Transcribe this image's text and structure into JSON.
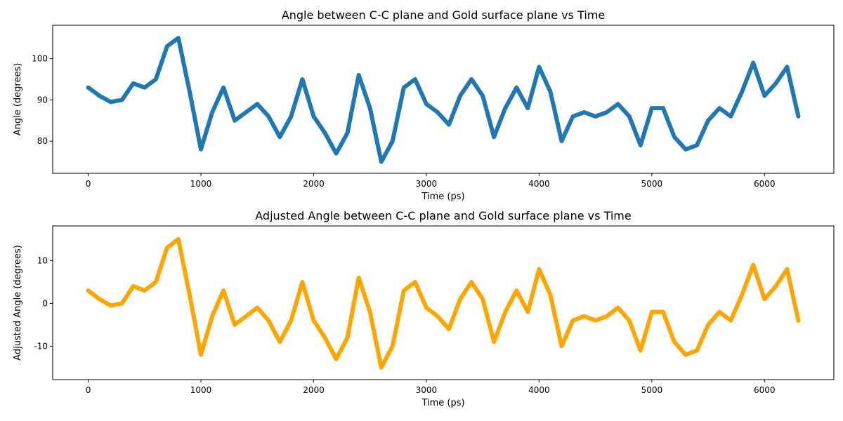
{
  "chart_data": [
    {
      "type": "line",
      "title": "Angle between C-C plane and Gold surface plane vs Time",
      "xlabel": "Time (ps)",
      "ylabel": "Angle (degrees)",
      "x": [
        0,
        100,
        200,
        300,
        400,
        500,
        600,
        700,
        800,
        900,
        1000,
        1100,
        1200,
        1300,
        1400,
        1500,
        1600,
        1700,
        1800,
        1900,
        2000,
        2100,
        2200,
        2300,
        2400,
        2500,
        2600,
        2700,
        2800,
        2900,
        3000,
        3100,
        3200,
        3300,
        3400,
        3500,
        3600,
        3700,
        3800,
        3900,
        4000,
        4100,
        4200,
        4300,
        4400,
        4500,
        4600,
        4700,
        4800,
        4900,
        5000,
        5100,
        5200,
        5300,
        5400,
        5500,
        5600,
        5700,
        5800,
        5900,
        6000,
        6100,
        6200,
        6300
      ],
      "series": [
        {
          "color": "#1f77b4",
          "values": [
            93,
            91,
            89.5,
            90,
            94,
            93,
            95,
            103,
            105,
            92,
            78,
            87,
            93,
            85,
            87,
            89,
            86,
            81,
            86,
            95,
            86,
            82,
            77,
            82,
            96,
            88,
            75,
            80,
            93,
            95,
            89,
            87,
            84,
            91,
            95,
            91,
            81,
            88,
            93,
            88,
            98,
            92,
            80,
            86,
            87,
            86,
            87,
            89,
            86,
            79,
            88,
            88,
            81,
            78,
            79,
            85,
            88,
            86,
            92,
            99,
            91,
            94,
            98,
            86
          ]
        }
      ],
      "xlim": [
        -315,
        6615
      ],
      "ylim": [
        72.2,
        108.1
      ],
      "xticks": [
        0,
        1000,
        2000,
        3000,
        4000,
        5000,
        6000
      ],
      "yticks": [
        80,
        90,
        100
      ]
    },
    {
      "type": "line",
      "title": "Adjusted Angle between C-C plane and Gold surface plane vs Time",
      "xlabel": "Time (ps)",
      "ylabel": "Adjusted Angle (degrees)",
      "x": [
        0,
        100,
        200,
        300,
        400,
        500,
        600,
        700,
        800,
        900,
        1000,
        1100,
        1200,
        1300,
        1400,
        1500,
        1600,
        1700,
        1800,
        1900,
        2000,
        2100,
        2200,
        2300,
        2400,
        2500,
        2600,
        2700,
        2800,
        2900,
        3000,
        3100,
        3200,
        3300,
        3400,
        3500,
        3600,
        3700,
        3800,
        3900,
        4000,
        4100,
        4200,
        4300,
        4400,
        4500,
        4600,
        4700,
        4800,
        4900,
        5000,
        5100,
        5200,
        5300,
        5400,
        5500,
        5600,
        5700,
        5800,
        5900,
        6000,
        6100,
        6200,
        6300
      ],
      "series": [
        {
          "color": "#ffa500",
          "values": [
            3,
            1,
            -0.5,
            0,
            4,
            3,
            5,
            13,
            15,
            2,
            -12,
            -3,
            3,
            -5,
            -3,
            -1,
            -4,
            -9,
            -4,
            5,
            -4,
            -8,
            -13,
            -8,
            6,
            -2,
            -15,
            -10,
            3,
            5,
            -1,
            -3,
            -6,
            1,
            5,
            1,
            -9,
            -2,
            3,
            -2,
            8,
            2,
            -10,
            -4,
            -3,
            -4,
            -3,
            -1,
            -4,
            -11,
            -2,
            -2,
            -9,
            -12,
            -11,
            -5,
            -2,
            -4,
            2,
            9,
            1,
            4,
            8,
            -4
          ]
        }
      ],
      "xlim": [
        -315,
        6615
      ],
      "ylim": [
        -17.8,
        18.1
      ],
      "xticks": [
        0,
        1000,
        2000,
        3000,
        4000,
        5000,
        6000
      ],
      "yticks": [
        -10,
        0,
        10
      ]
    }
  ]
}
